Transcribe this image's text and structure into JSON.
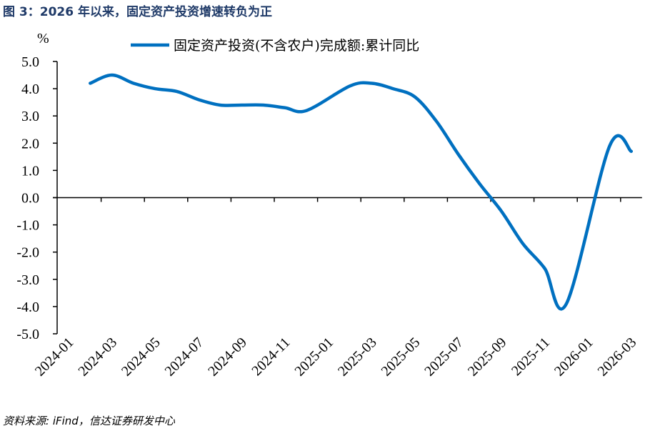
{
  "title": "图 3：2026 年以来，固定资产投资增速转负为正",
  "source": "资料来源: iFind，信达证券研发中心",
  "chart_data": {
    "type": "line",
    "title": "",
    "ylabel": "%",
    "xlabel": "",
    "ylim": [
      -5,
      5
    ],
    "yticks": [
      "5.0",
      "4.0",
      "3.0",
      "2.0",
      "1.0",
      "0.0",
      "-1.0",
      "-2.0",
      "-3.0",
      "-4.0",
      "-5.0"
    ],
    "ytick_values": [
      5,
      4,
      3,
      2,
      1,
      0,
      -1,
      -2,
      -3,
      -4,
      -5
    ],
    "categories": [
      "2024-01",
      "2024-02",
      "2024-03",
      "2024-04",
      "2024-05",
      "2024-06",
      "2024-07",
      "2024-08",
      "2024-09",
      "2024-10",
      "2024-11",
      "2024-12",
      "2025-01",
      "2025-02",
      "2025-03",
      "2025-04",
      "2025-05",
      "2025-06",
      "2025-07",
      "2025-08",
      "2025-09",
      "2025-10",
      "2025-11",
      "2025-12",
      "2026-01",
      "2026-02",
      "2026-03"
    ],
    "xtick_labels": [
      "2024-01",
      "2024-03",
      "2024-05",
      "2024-07",
      "2024-09",
      "2024-11",
      "2025-01",
      "2025-03",
      "2025-05",
      "2025-07",
      "2025-09",
      "2025-11",
      "2026-01",
      "2026-03"
    ],
    "grid": false,
    "legend_position": "top",
    "smoothed": true,
    "series": [
      {
        "name": "固定资产投资(不含农户)完成额:累计同比",
        "color": "#0070c0",
        "values": [
          null,
          4.2,
          4.5,
          4.2,
          4.0,
          3.9,
          3.6,
          3.4,
          3.4,
          3.4,
          3.3,
          3.2,
          null,
          4.1,
          4.2,
          4.0,
          3.7,
          2.8,
          1.6,
          0.5,
          -0.5,
          -1.7,
          -2.6,
          -3.9,
          null,
          1.9,
          1.7
        ]
      }
    ]
  }
}
